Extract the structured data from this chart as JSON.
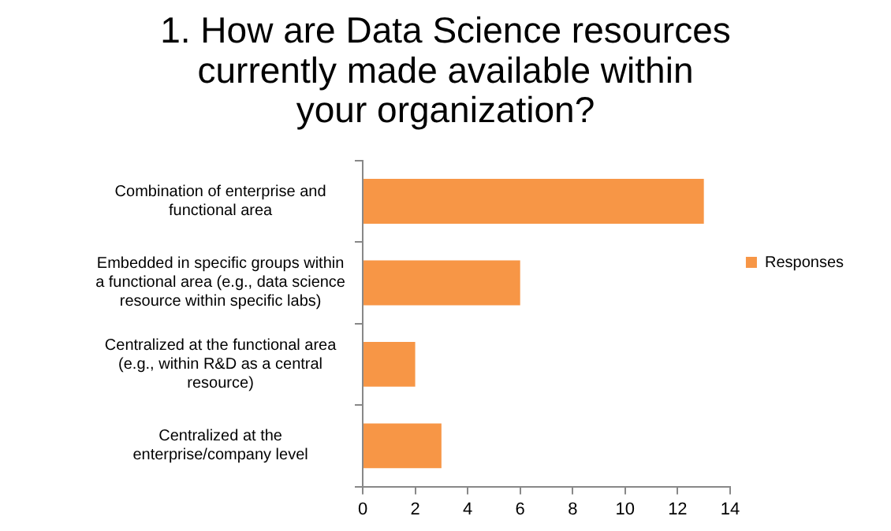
{
  "chart_data": {
    "type": "bar",
    "orientation": "horizontal",
    "title": "1. How are Data Science resources currently made available within your organization?",
    "categories": [
      "Combination of enterprise and functional area",
      "Embedded in specific groups within a functional area (e.g., data science resource within specific labs)",
      "Centralized at the functional area (e.g., within R&D as a central resource)",
      "Centralized at the enterprise/company level"
    ],
    "series": [
      {
        "name": "Responses",
        "color": "#f79646",
        "values": [
          13,
          6,
          2,
          3
        ]
      }
    ],
    "xlim": [
      0,
      14
    ],
    "xticks": [
      0,
      2,
      4,
      6,
      8,
      10,
      12,
      14
    ],
    "grid": false,
    "legend": "right"
  }
}
